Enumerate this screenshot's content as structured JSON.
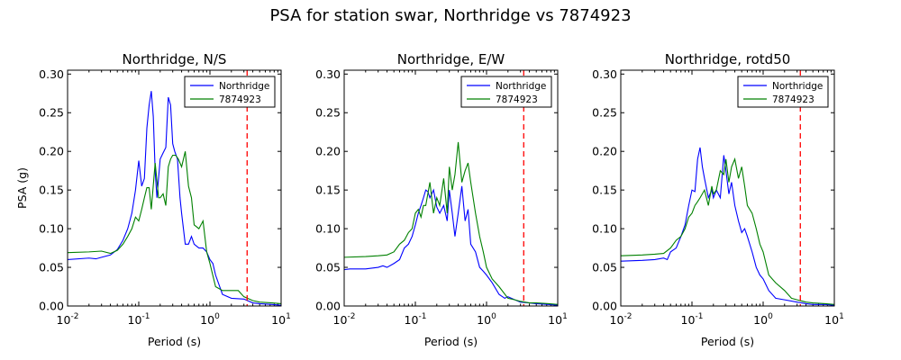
{
  "title": "PSA for station swar, Northridge vs 7874923",
  "chart_data": [
    {
      "type": "line",
      "title": "Northridge, N/S",
      "xlabel": "Period (s)",
      "ylabel": "PSA (g)",
      "xscale": "log",
      "xlim": [
        0.01,
        10
      ],
      "ylim": [
        0,
        0.305
      ],
      "xticks": [
        {
          "base": "10",
          "exp": "-2"
        },
        {
          "base": "10",
          "exp": "-1"
        },
        {
          "base": "10",
          "exp": "0"
        },
        {
          "base": "10",
          "exp": "1"
        }
      ],
      "yticks": [
        "0.00",
        "0.05",
        "0.10",
        "0.15",
        "0.20",
        "0.25",
        "0.30"
      ],
      "legend": "top-right",
      "vline": {
        "x": 3.33,
        "color": "#ff0000",
        "style": "dashed"
      },
      "series": [
        {
          "name": "Northridge",
          "color": "#0000ff",
          "x": [
            0.01,
            0.02,
            0.025,
            0.03,
            0.04,
            0.05,
            0.06,
            0.07,
            0.08,
            0.09,
            0.1,
            0.11,
            0.12,
            0.13,
            0.14,
            0.15,
            0.16,
            0.17,
            0.18,
            0.2,
            0.22,
            0.24,
            0.26,
            0.28,
            0.3,
            0.32,
            0.35,
            0.38,
            0.4,
            0.45,
            0.5,
            0.55,
            0.6,
            0.7,
            0.8,
            0.9,
            1.0,
            1.1,
            1.2,
            1.5,
            2.0,
            3.0,
            4.0,
            5.0,
            7.5,
            10.0
          ],
          "y": [
            0.06,
            0.062,
            0.061,
            0.063,
            0.066,
            0.073,
            0.085,
            0.1,
            0.12,
            0.15,
            0.188,
            0.155,
            0.165,
            0.23,
            0.26,
            0.278,
            0.245,
            0.175,
            0.14,
            0.19,
            0.198,
            0.205,
            0.27,
            0.26,
            0.21,
            0.2,
            0.19,
            0.14,
            0.12,
            0.08,
            0.08,
            0.09,
            0.08,
            0.075,
            0.075,
            0.07,
            0.06,
            0.055,
            0.04,
            0.015,
            0.01,
            0.009,
            0.004,
            0.003,
            0.002,
            0.001
          ]
        },
        {
          "name": "7874923",
          "color": "#008000",
          "x": [
            0.01,
            0.02,
            0.03,
            0.04,
            0.05,
            0.06,
            0.07,
            0.08,
            0.09,
            0.1,
            0.11,
            0.12,
            0.13,
            0.14,
            0.15,
            0.17,
            0.19,
            0.2,
            0.22,
            0.24,
            0.26,
            0.28,
            0.3,
            0.33,
            0.36,
            0.4,
            0.45,
            0.5,
            0.55,
            0.6,
            0.7,
            0.8,
            0.9,
            1.0,
            1.2,
            1.5,
            2.0,
            2.5,
            3.0,
            4.0,
            5.0,
            7.5,
            10.0
          ],
          "y": [
            0.069,
            0.07,
            0.071,
            0.068,
            0.072,
            0.08,
            0.09,
            0.1,
            0.115,
            0.11,
            0.125,
            0.14,
            0.153,
            0.153,
            0.125,
            0.185,
            0.14,
            0.14,
            0.145,
            0.13,
            0.18,
            0.19,
            0.195,
            0.195,
            0.19,
            0.18,
            0.2,
            0.155,
            0.14,
            0.105,
            0.1,
            0.11,
            0.07,
            0.055,
            0.025,
            0.02,
            0.02,
            0.02,
            0.012,
            0.007,
            0.005,
            0.004,
            0.003
          ]
        }
      ]
    },
    {
      "type": "line",
      "title": "Northridge, E/W",
      "xlabel": "Period (s)",
      "ylabel": "",
      "xscale": "log",
      "xlim": [
        0.01,
        10
      ],
      "ylim": [
        0,
        0.305
      ],
      "xticks": [
        {
          "base": "10",
          "exp": "-2"
        },
        {
          "base": "10",
          "exp": "-1"
        },
        {
          "base": "10",
          "exp": "0"
        },
        {
          "base": "10",
          "exp": "1"
        }
      ],
      "yticks": [
        "0.00",
        "0.05",
        "0.10",
        "0.15",
        "0.20",
        "0.25",
        "0.30"
      ],
      "legend": "top-right",
      "vline": {
        "x": 3.33,
        "color": "#ff0000",
        "style": "dashed"
      },
      "series": [
        {
          "name": "Northridge",
          "color": "#0000ff",
          "x": [
            0.01,
            0.012,
            0.02,
            0.03,
            0.035,
            0.04,
            0.05,
            0.06,
            0.07,
            0.08,
            0.09,
            0.1,
            0.11,
            0.12,
            0.13,
            0.14,
            0.15,
            0.16,
            0.18,
            0.2,
            0.22,
            0.25,
            0.28,
            0.3,
            0.33,
            0.36,
            0.4,
            0.45,
            0.5,
            0.55,
            0.6,
            0.7,
            0.8,
            0.9,
            1.0,
            1.2,
            1.5,
            1.8,
            2.0,
            2.5,
            3.0,
            4.0,
            5.0,
            7.5,
            10.0
          ],
          "y": [
            0.047,
            0.048,
            0.048,
            0.05,
            0.052,
            0.05,
            0.055,
            0.06,
            0.075,
            0.08,
            0.09,
            0.105,
            0.12,
            0.13,
            0.14,
            0.15,
            0.148,
            0.14,
            0.15,
            0.128,
            0.12,
            0.13,
            0.11,
            0.15,
            0.12,
            0.09,
            0.12,
            0.155,
            0.11,
            0.125,
            0.08,
            0.07,
            0.05,
            0.045,
            0.04,
            0.03,
            0.015,
            0.01,
            0.012,
            0.008,
            0.005,
            0.004,
            0.003,
            0.002,
            0.001
          ]
        },
        {
          "name": "7874923",
          "color": "#008000",
          "x": [
            0.01,
            0.02,
            0.03,
            0.04,
            0.05,
            0.06,
            0.07,
            0.08,
            0.09,
            0.1,
            0.11,
            0.12,
            0.13,
            0.14,
            0.16,
            0.18,
            0.2,
            0.22,
            0.25,
            0.28,
            0.3,
            0.33,
            0.36,
            0.4,
            0.45,
            0.5,
            0.55,
            0.6,
            0.7,
            0.8,
            0.9,
            1.0,
            1.2,
            1.5,
            2.0,
            2.5,
            3.0,
            4.0,
            5.0,
            7.5,
            10.0
          ],
          "y": [
            0.063,
            0.064,
            0.065,
            0.066,
            0.07,
            0.08,
            0.085,
            0.095,
            0.1,
            0.12,
            0.125,
            0.115,
            0.13,
            0.13,
            0.16,
            0.12,
            0.14,
            0.13,
            0.165,
            0.12,
            0.18,
            0.15,
            0.17,
            0.212,
            0.16,
            0.175,
            0.185,
            0.16,
            0.12,
            0.09,
            0.07,
            0.05,
            0.035,
            0.025,
            0.01,
            0.008,
            0.006,
            0.004,
            0.004,
            0.003,
            0.002
          ]
        }
      ]
    },
    {
      "type": "line",
      "title": "Northridge, rotd50",
      "xlabel": "Period (s)",
      "ylabel": "",
      "xscale": "log",
      "xlim": [
        0.01,
        10
      ],
      "ylim": [
        0,
        0.305
      ],
      "xticks": [
        {
          "base": "10",
          "exp": "-2"
        },
        {
          "base": "10",
          "exp": "-1"
        },
        {
          "base": "10",
          "exp": "0"
        },
        {
          "base": "10",
          "exp": "1"
        }
      ],
      "yticks": [
        "0.00",
        "0.05",
        "0.10",
        "0.15",
        "0.20",
        "0.25",
        "0.30"
      ],
      "legend": "top-right",
      "vline": {
        "x": 3.33,
        "color": "#ff0000",
        "style": "dashed"
      },
      "series": [
        {
          "name": "Northridge",
          "color": "#0000ff",
          "x": [
            0.01,
            0.02,
            0.03,
            0.04,
            0.045,
            0.05,
            0.06,
            0.07,
            0.08,
            0.09,
            0.1,
            0.11,
            0.12,
            0.13,
            0.14,
            0.15,
            0.17,
            0.19,
            0.2,
            0.22,
            0.25,
            0.28,
            0.3,
            0.33,
            0.36,
            0.4,
            0.45,
            0.5,
            0.55,
            0.6,
            0.7,
            0.8,
            0.9,
            1.0,
            1.2,
            1.5,
            2.0,
            3.0,
            4.0,
            5.0,
            7.5,
            10.0
          ],
          "y": [
            0.058,
            0.059,
            0.06,
            0.062,
            0.06,
            0.07,
            0.075,
            0.09,
            0.105,
            0.13,
            0.15,
            0.148,
            0.19,
            0.205,
            0.18,
            0.165,
            0.14,
            0.15,
            0.14,
            0.15,
            0.14,
            0.195,
            0.175,
            0.145,
            0.16,
            0.13,
            0.11,
            0.095,
            0.1,
            0.09,
            0.07,
            0.05,
            0.04,
            0.035,
            0.02,
            0.01,
            0.008,
            0.005,
            0.003,
            0.002,
            0.002,
            0.001
          ]
        },
        {
          "name": "7874923",
          "color": "#008000",
          "x": [
            0.01,
            0.02,
            0.03,
            0.04,
            0.05,
            0.06,
            0.07,
            0.08,
            0.09,
            0.1,
            0.11,
            0.12,
            0.13,
            0.15,
            0.17,
            0.19,
            0.2,
            0.22,
            0.25,
            0.28,
            0.3,
            0.33,
            0.36,
            0.4,
            0.45,
            0.5,
            0.55,
            0.6,
            0.7,
            0.8,
            0.9,
            1.0,
            1.2,
            1.5,
            2.0,
            2.5,
            3.0,
            4.0,
            5.0,
            7.5,
            10.0
          ],
          "y": [
            0.065,
            0.066,
            0.067,
            0.068,
            0.075,
            0.085,
            0.09,
            0.1,
            0.115,
            0.12,
            0.13,
            0.135,
            0.14,
            0.15,
            0.13,
            0.155,
            0.145,
            0.15,
            0.175,
            0.17,
            0.19,
            0.16,
            0.18,
            0.19,
            0.165,
            0.18,
            0.155,
            0.13,
            0.12,
            0.1,
            0.08,
            0.07,
            0.04,
            0.03,
            0.02,
            0.01,
            0.008,
            0.005,
            0.004,
            0.003,
            0.002
          ]
        }
      ]
    }
  ]
}
